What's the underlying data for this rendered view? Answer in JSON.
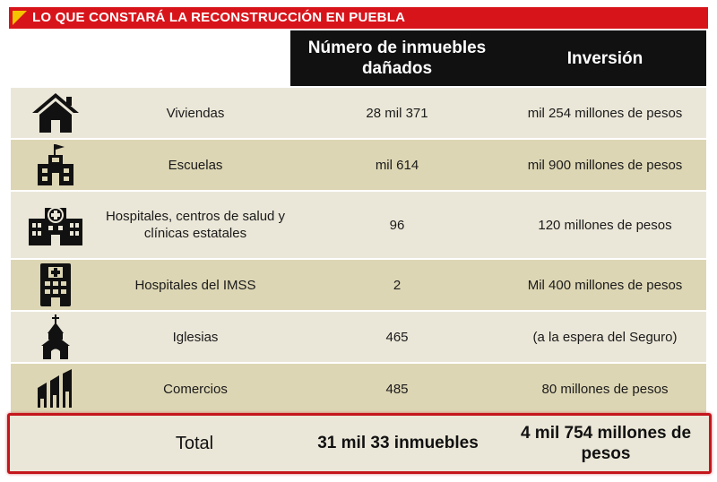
{
  "title": "LO QUE CONSTARÁ LA RECONSTRUCCIÓN EN PUEBLA",
  "headers": {
    "numero": "Número de inmuebles dañados",
    "inversion": "Inversión"
  },
  "rows": [
    {
      "icon": "house-icon",
      "categoria": "Viviendas",
      "numero": "28 mil 371",
      "inversion": "mil 254 millones de pesos"
    },
    {
      "icon": "school-icon",
      "categoria": "Escuelas",
      "numero": "mil 614",
      "inversion": "mil 900 millones de pesos"
    },
    {
      "icon": "hospital-icon",
      "categoria": "Hospitales, centros de salud y clínicas estatales",
      "numero": "96",
      "inversion": "120 millones de pesos"
    },
    {
      "icon": "imss-hospital-icon",
      "categoria": "Hospitales del IMSS",
      "numero": "2",
      "inversion": "Mil 400 millones de pesos"
    },
    {
      "icon": "church-icon",
      "categoria": "Iglesias",
      "numero": "465",
      "inversion": "(a la espera del Seguro)"
    },
    {
      "icon": "commerce-icon",
      "categoria": "Comercios",
      "numero": "485",
      "inversion": "80 millones de pesos"
    }
  ],
  "total": {
    "label": "Total",
    "numero": "31 mil 33 inmuebles",
    "inversion": "4 mil 754 millones de pesos"
  },
  "colors": {
    "title_bar": "#d8141b",
    "flag": "#f5c400",
    "header": "#111111",
    "row_light": "#ebe7d8",
    "row_dark": "#ddd6b4",
    "total_border": "#c4161c"
  }
}
